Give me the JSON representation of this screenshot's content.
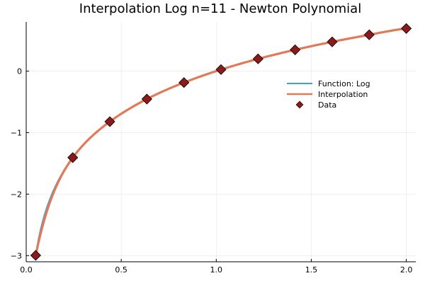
{
  "chart_data": {
    "type": "line",
    "title": "Interpolation Log n=11 - Newton Polynomial",
    "xlabel": "",
    "ylabel": "",
    "xlim": [
      0,
      2.05
    ],
    "ylim": [
      -3.1,
      0.8
    ],
    "x_ticks": [
      0.0,
      0.5,
      1.0,
      1.5,
      2.0
    ],
    "x_tick_labels": [
      "0.0",
      "0.5",
      "1.0",
      "1.5",
      "2.0"
    ],
    "y_ticks": [
      -3,
      -2,
      -1,
      0
    ],
    "y_tick_labels": [
      "−3",
      "−2",
      "−1",
      "0"
    ],
    "grid": true,
    "legend_position": "right",
    "series": [
      {
        "name": "Function: Log",
        "kind": "line",
        "color": "#3da1d6",
        "expression": "log(x)",
        "domain": [
          0.05,
          2.0
        ]
      },
      {
        "name": "Interpolation",
        "kind": "line",
        "color": "#e07a58",
        "expression": "newton interpolating polynomial through Data",
        "domain": [
          0.05,
          2.0
        ]
      },
      {
        "name": "Data",
        "kind": "scatter",
        "color": "#8b1a1a",
        "marker": "diamond",
        "x": [
          0.05,
          0.245,
          0.44,
          0.635,
          0.83,
          1.025,
          1.22,
          1.415,
          1.61,
          1.805,
          2.0
        ],
        "y": [
          -2.996,
          -1.406,
          -0.821,
          -0.454,
          -0.186,
          0.025,
          0.199,
          0.347,
          0.476,
          0.591,
          0.693
        ]
      }
    ]
  }
}
